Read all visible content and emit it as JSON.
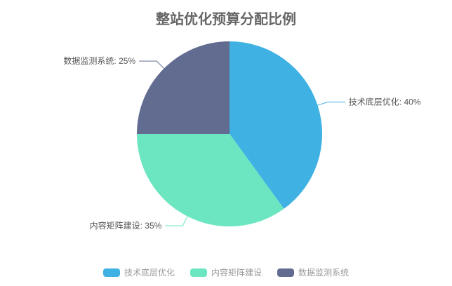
{
  "chart_data": {
    "type": "pie",
    "title": "整站优化预算分配比例",
    "legend_position": "bottom",
    "direction": "clockwise",
    "start_angle_deg": 0,
    "unit": "%",
    "items": [
      {
        "name": "技术底层优化",
        "value": 40,
        "label": "技术底层优化: 40%",
        "color": "#3fb1e3"
      },
      {
        "name": "内容矩阵建设",
        "value": 35,
        "label": "内容矩阵建设: 35%",
        "color": "#6be6c1"
      },
      {
        "name": "数据监测系统",
        "value": 25,
        "label": "数据监测系统: 25%",
        "color": "#626c91"
      }
    ],
    "colors": {
      "title_text": "#666666",
      "label_text": "#555555",
      "legend_text": "#999999",
      "background": "#ffffff"
    }
  }
}
